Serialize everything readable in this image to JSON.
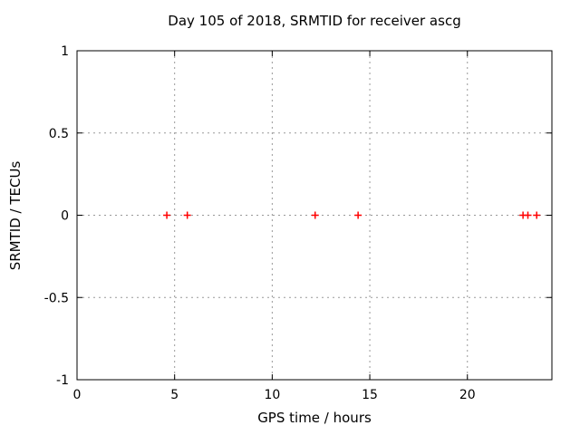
{
  "figure": {
    "background": "#ffffff"
  },
  "chart_data": {
    "type": "scatter",
    "title": "Day 105 of 2018, SRMTID for receiver ascg",
    "xlabel": "GPS time / hours",
    "ylabel": "SRMTID / TECUs",
    "xlim": [
      0,
      24.33
    ],
    "ylim": [
      -1,
      1
    ],
    "xticks": [
      {
        "value": 0,
        "label": "0"
      },
      {
        "value": 5,
        "label": "5"
      },
      {
        "value": 10,
        "label": "10"
      },
      {
        "value": 15,
        "label": "15"
      },
      {
        "value": 20,
        "label": "20"
      }
    ],
    "yticks": [
      {
        "value": 1,
        "label": "1"
      },
      {
        "value": 0.5,
        "label": "0.5"
      },
      {
        "value": 0,
        "label": "0"
      },
      {
        "value": -0.5,
        "label": "-0.5"
      },
      {
        "value": -1,
        "label": "-1"
      }
    ],
    "grid": true,
    "legend": false,
    "marker": "plus",
    "series": [
      {
        "name": "SRMTID",
        "x": [
          4.6,
          5.65,
          12.2,
          14.4,
          22.85,
          23.1,
          23.55
        ],
        "y": [
          0,
          0,
          0,
          0,
          0,
          0,
          0
        ]
      }
    ],
    "colors": {
      "marker": "#ff0000",
      "grid": "#999999",
      "axis": "#000000",
      "text": "#000000",
      "background": "#ffffff"
    }
  }
}
